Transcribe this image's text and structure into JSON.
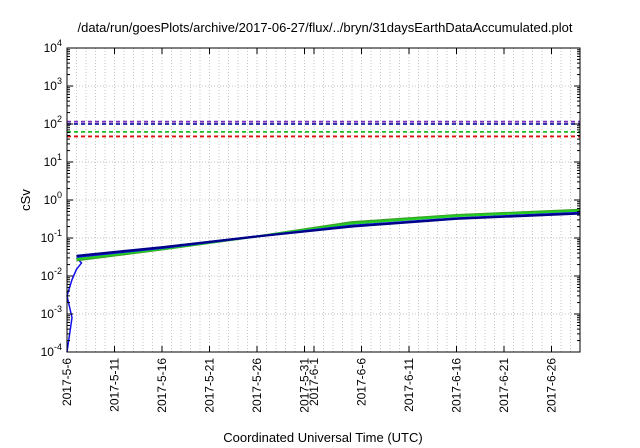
{
  "chart_data": {
    "type": "line",
    "title": "/data/run/goesPlots/archive/2017-06-27/flux/../bryn/31daysEarthDataAccumulated.plot",
    "xlabel": "Coordinated Universal Time (UTC)",
    "ylabel": "cSv",
    "yscale": "log",
    "ylim": [
      0.0001,
      10000
    ],
    "xlim": [
      "2017-05-06",
      "2017-06-29"
    ],
    "grid": true,
    "legend": "none",
    "x_ticks": [
      "2017-5-6",
      "2017-5-11",
      "2017-5-16",
      "2017-5-21",
      "2017-5-26",
      "2017-5-31",
      "2017-6-1",
      "2017-6-6",
      "2017-6-11",
      "2017-6-16",
      "2017-6-21",
      "2017-6-26"
    ],
    "x_tick_dates": [
      "2017-05-06",
      "2017-05-11",
      "2017-05-16",
      "2017-05-21",
      "2017-05-26",
      "2017-05-31",
      "2017-06-01",
      "2017-06-06",
      "2017-06-11",
      "2017-06-16",
      "2017-06-21",
      "2017-06-26"
    ],
    "y_ticks": [
      {
        "value": 0.0001,
        "base": "10",
        "exp": "-4"
      },
      {
        "value": 0.001,
        "base": "10",
        "exp": "-3"
      },
      {
        "value": 0.01,
        "base": "10",
        "exp": "-2"
      },
      {
        "value": 0.1,
        "base": "10",
        "exp": "-1"
      },
      {
        "value": 1,
        "base": "10",
        "exp": "0"
      },
      {
        "value": 10,
        "base": "10",
        "exp": "1"
      },
      {
        "value": 100,
        "base": "10",
        "exp": "2"
      },
      {
        "value": 1000,
        "base": "10",
        "exp": "3"
      },
      {
        "value": 10000,
        "base": "10",
        "exp": "4"
      }
    ],
    "reference_lines": [
      {
        "y": 115,
        "color": "#7b2fbf"
      },
      {
        "y": 100,
        "color": "#1a1aa0"
      },
      {
        "y": 62,
        "color": "#22bb22"
      },
      {
        "y": 47,
        "color": "#dd1111"
      }
    ],
    "series": [
      {
        "color": "#3aa02a",
        "x": [
          "2017-05-07",
          "2017-05-16",
          "2017-05-26",
          "2017-06-05",
          "2017-06-16",
          "2017-06-29"
        ],
        "y": [
          0.026,
          0.05,
          0.11,
          0.26,
          0.4,
          0.55
        ]
      },
      {
        "color": "#22cc22",
        "x": [
          "2017-05-07",
          "2017-05-16",
          "2017-05-26",
          "2017-06-05",
          "2017-06-16",
          "2017-06-29"
        ],
        "y": [
          0.028,
          0.052,
          0.11,
          0.24,
          0.38,
          0.52
        ]
      },
      {
        "color": "#1111dd",
        "x": [
          "2017-05-07",
          "2017-05-16",
          "2017-05-26",
          "2017-06-05",
          "2017-06-16",
          "2017-06-29"
        ],
        "y": [
          0.032,
          0.055,
          0.11,
          0.21,
          0.33,
          0.46
        ]
      },
      {
        "color": "#000088",
        "x": [
          "2017-05-07",
          "2017-05-16",
          "2017-05-26",
          "2017-06-05",
          "2017-06-16",
          "2017-06-29"
        ],
        "y": [
          0.034,
          0.057,
          0.11,
          0.2,
          0.32,
          0.44
        ]
      }
    ],
    "initial_rise": {
      "color": "#1111ee",
      "x": [
        "2017-05-06",
        "2017-05-06",
        "2017-05-06",
        "2017-05-06",
        "2017-05-07",
        "2017-05-07",
        "2017-05-07"
      ],
      "y": [
        0.0001,
        0.0008,
        0.003,
        0.008,
        0.015,
        0.022,
        0.03
      ]
    }
  }
}
